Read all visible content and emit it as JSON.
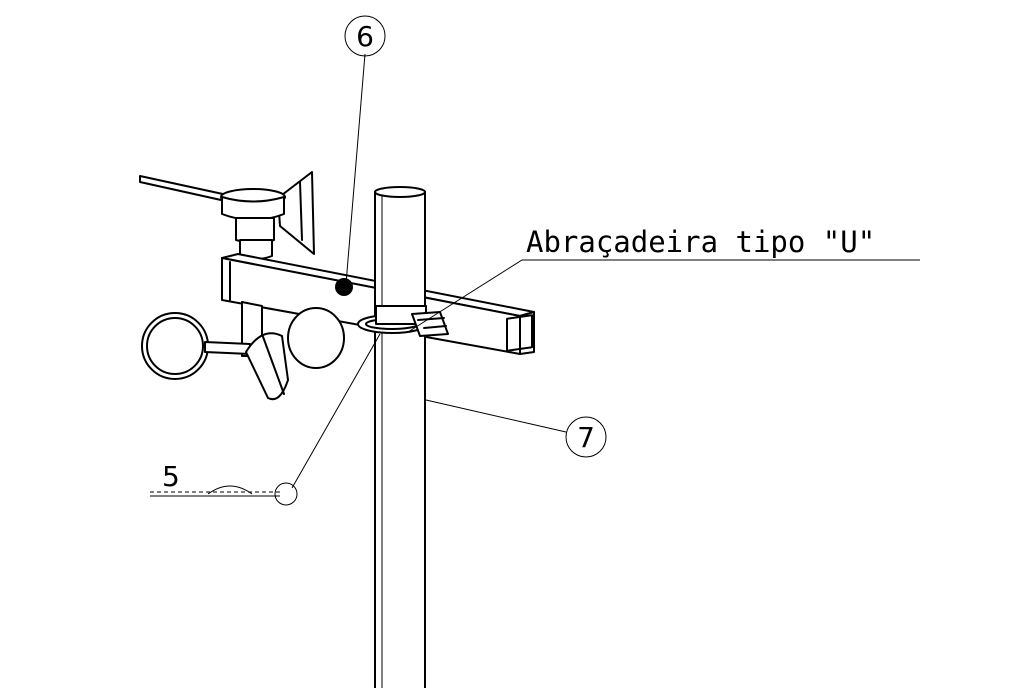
{
  "callouts": {
    "bubble_6": "6",
    "bubble_7": "7",
    "label_5": "5"
  },
  "annotation": {
    "clamp_label": "Abraçadeira tipo \"U\""
  },
  "colors": {
    "line": "#000000",
    "background": "#ffffff"
  }
}
